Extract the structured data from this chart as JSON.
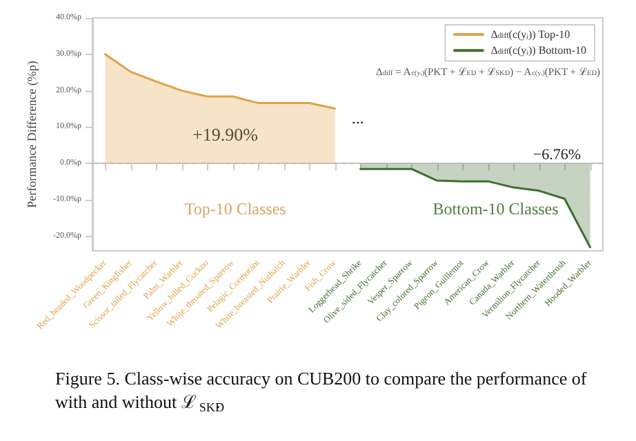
{
  "chart_data": {
    "type": "area",
    "ylabel": "Performance Difference (%p)",
    "categories": [
      "Red_headed_Woodpecker",
      "Green_Kingfisher",
      "Scissor_tailed_Flycatcher",
      "Palm_Warbler",
      "Yellow_billed_Cuckoo",
      "White_throated_Sparrow",
      "Pelagic_Cormorant",
      "White_breasted_Nuthatch",
      "Prairie_Warbler",
      "Fish_Crow",
      "Loggerhead_Shrike",
      "Olive_sided_Flycatcher",
      "Vesper_Sparrow",
      "Clay_colored_Sparrow",
      "Pigeon_Guillemot",
      "American_Crow",
      "Canada_Warbler",
      "Vermilion_Flycatcher",
      "Northern_Waterthrush",
      "Hooded_Warbler"
    ],
    "series": [
      {
        "name": "Δ$_{diff}$(c(yᵢ)) Top-10",
        "color": "#e0a24a",
        "values": [
          30,
          25.2,
          22.5,
          20,
          18.4,
          18.4,
          16.6,
          16.6,
          16.6,
          15.1,
          null,
          null,
          null,
          null,
          null,
          null,
          null,
          null,
          null,
          null
        ]
      },
      {
        "name": "Δ$_{diff}$(c(yᵢ)) Bottom-10",
        "color": "#3f6e2f",
        "values": [
          null,
          null,
          null,
          null,
          null,
          null,
          null,
          null,
          null,
          null,
          -1.5,
          -1.5,
          -1.5,
          -4.7,
          -4.9,
          -4.9,
          -6.6,
          -7.5,
          -9.7,
          -23
        ]
      }
    ],
    "ylim": [
      -24,
      40
    ],
    "yticks": [
      {
        "value": -20,
        "label": "-20.0%p"
      },
      {
        "value": -10,
        "label": "-10.0%p"
      },
      {
        "value": 0,
        "label": "0.0%p"
      },
      {
        "value": 10,
        "label": "10.0%p"
      },
      {
        "value": 20,
        "label": "20.0%p"
      },
      {
        "value": 30,
        "label": "30.0%p"
      },
      {
        "value": 40,
        "label": "40.0%p"
      }
    ],
    "grid": false,
    "legend": "top right",
    "marker": "none",
    "line_style": "solid",
    "ref_lines": [
      {
        "axis": "y",
        "value": 0,
        "color": "#bbbbbb",
        "line_style": "dashed"
      }
    ],
    "annotations": [
      "Δ$_{diff}$ = A$_{c(yᵢ)}$(PKT + ℒ$_{ED}$ + ℒ$_{SKD}$) − A$_{c(yᵢ)}$(PKT + ℒ$_{ED}$)",
      "+19.90%",
      "...",
      "−6.76%",
      "Top-10 Classes",
      "Bottom-10 Classes",
      "Figure 5. Class-wise accuracy on CUB200 to compare the performance of with and without ℒ$_{SKD}$."
    ]
  }
}
